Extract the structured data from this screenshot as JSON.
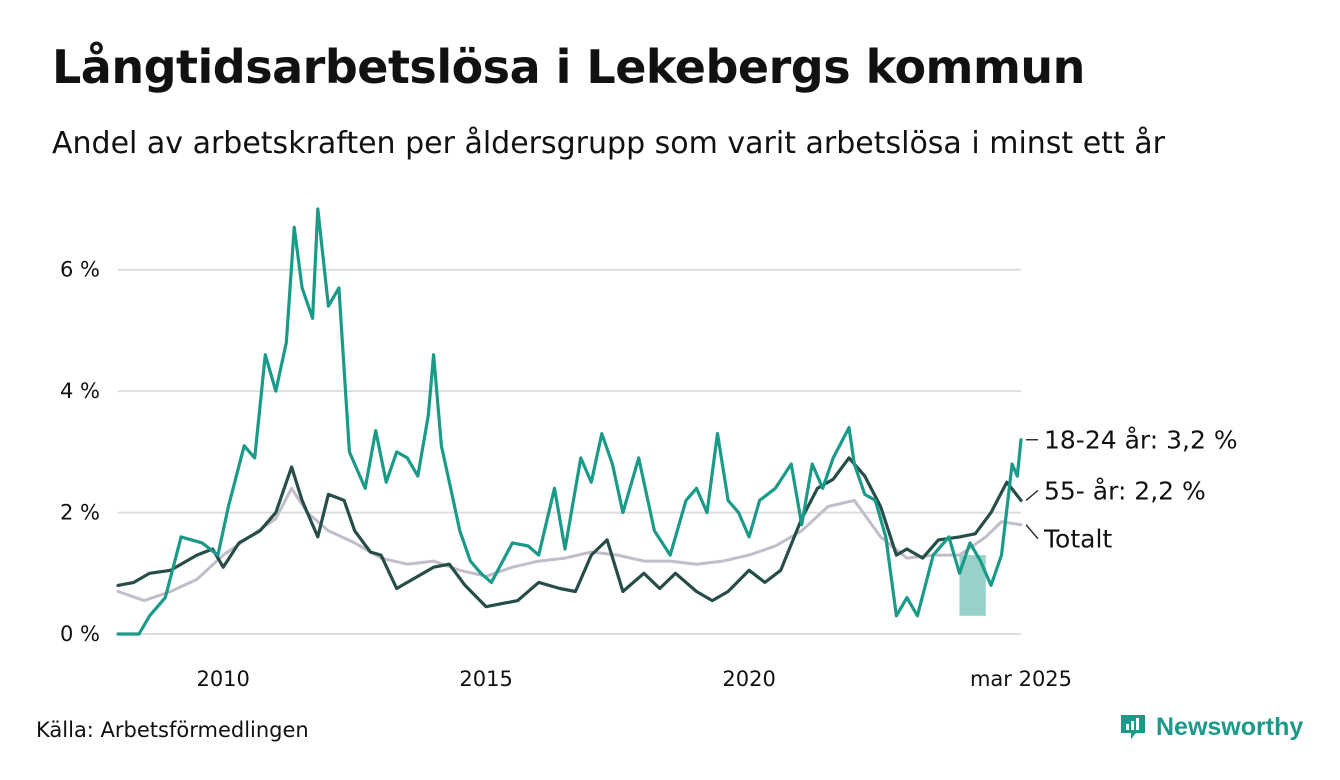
{
  "title": "Långtidsarbetslösa i Lekebergs kommun",
  "subtitle": "Andel av arbetskraften per åldersgrupp som varit arbetslösa i minst ett år",
  "source": "Källa: Arbetsförmedlingen",
  "brand": "Newsworthy",
  "colors": {
    "young": "#1a9a88",
    "old": "#264d47",
    "total": "#c2bccb",
    "grid": "#dddddd",
    "brand": "#1a9a88"
  },
  "chart_data": {
    "type": "line",
    "ylim": [
      0,
      7
    ],
    "xlim": [
      2008.0,
      2025.17
    ],
    "grid": true,
    "yticks": [
      {
        "value": 0,
        "label": "0 %"
      },
      {
        "value": 2,
        "label": "2 %"
      },
      {
        "value": 4,
        "label": "4 %"
      },
      {
        "value": 6,
        "label": "6 %"
      }
    ],
    "xticks": [
      {
        "value": 2010.0,
        "label": "2010"
      },
      {
        "value": 2015.0,
        "label": "2015"
      },
      {
        "value": 2020.0,
        "label": "2020"
      },
      {
        "value": 2025.17,
        "label": "mar 2025"
      }
    ],
    "series": [
      {
        "key": "total",
        "color": "#c2bccb",
        "label": "Totalt",
        "labelValue": 1.8,
        "points": [
          [
            2008.0,
            0.7
          ],
          [
            2008.5,
            0.55
          ],
          [
            2009.0,
            0.7
          ],
          [
            2009.5,
            0.9
          ],
          [
            2010.0,
            1.3
          ],
          [
            2010.5,
            1.6
          ],
          [
            2011.0,
            1.9
          ],
          [
            2011.3,
            2.4
          ],
          [
            2011.6,
            2.0
          ],
          [
            2012.0,
            1.7
          ],
          [
            2012.5,
            1.5
          ],
          [
            2013.0,
            1.25
          ],
          [
            2013.5,
            1.15
          ],
          [
            2014.0,
            1.2
          ],
          [
            2014.5,
            1.05
          ],
          [
            2015.0,
            0.95
          ],
          [
            2015.5,
            1.1
          ],
          [
            2016.0,
            1.2
          ],
          [
            2016.5,
            1.25
          ],
          [
            2017.0,
            1.35
          ],
          [
            2017.5,
            1.3
          ],
          [
            2018.0,
            1.2
          ],
          [
            2018.5,
            1.2
          ],
          [
            2019.0,
            1.15
          ],
          [
            2019.5,
            1.2
          ],
          [
            2020.0,
            1.3
          ],
          [
            2020.5,
            1.45
          ],
          [
            2021.0,
            1.7
          ],
          [
            2021.5,
            2.1
          ],
          [
            2022.0,
            2.2
          ],
          [
            2022.5,
            1.6
          ],
          [
            2023.0,
            1.25
          ],
          [
            2023.5,
            1.3
          ],
          [
            2024.0,
            1.3
          ],
          [
            2024.5,
            1.6
          ],
          [
            2024.8,
            1.85
          ],
          [
            2025.17,
            1.8
          ]
        ]
      },
      {
        "key": "old",
        "color": "#264d47",
        "label": "55- år: 2,2 %",
        "labelValue": 2.2,
        "points": [
          [
            2008.0,
            0.8
          ],
          [
            2008.3,
            0.85
          ],
          [
            2008.6,
            1.0
          ],
          [
            2009.0,
            1.05
          ],
          [
            2009.5,
            1.3
          ],
          [
            2009.8,
            1.4
          ],
          [
            2010.0,
            1.1
          ],
          [
            2010.3,
            1.5
          ],
          [
            2010.7,
            1.7
          ],
          [
            2011.0,
            2.0
          ],
          [
            2011.3,
            2.75
          ],
          [
            2011.5,
            2.2
          ],
          [
            2011.8,
            1.6
          ],
          [
            2012.0,
            2.3
          ],
          [
            2012.3,
            2.2
          ],
          [
            2012.5,
            1.7
          ],
          [
            2012.8,
            1.35
          ],
          [
            2013.0,
            1.3
          ],
          [
            2013.3,
            0.75
          ],
          [
            2013.6,
            0.9
          ],
          [
            2014.0,
            1.1
          ],
          [
            2014.3,
            1.15
          ],
          [
            2014.6,
            0.8
          ],
          [
            2015.0,
            0.45
          ],
          [
            2015.3,
            0.5
          ],
          [
            2015.6,
            0.55
          ],
          [
            2016.0,
            0.85
          ],
          [
            2016.4,
            0.75
          ],
          [
            2016.7,
            0.7
          ],
          [
            2017.0,
            1.3
          ],
          [
            2017.3,
            1.55
          ],
          [
            2017.6,
            0.7
          ],
          [
            2018.0,
            1.0
          ],
          [
            2018.3,
            0.75
          ],
          [
            2018.6,
            1.0
          ],
          [
            2019.0,
            0.7
          ],
          [
            2019.3,
            0.55
          ],
          [
            2019.6,
            0.7
          ],
          [
            2020.0,
            1.05
          ],
          [
            2020.3,
            0.85
          ],
          [
            2020.6,
            1.05
          ],
          [
            2021.0,
            1.9
          ],
          [
            2021.3,
            2.4
          ],
          [
            2021.6,
            2.55
          ],
          [
            2021.9,
            2.9
          ],
          [
            2022.2,
            2.6
          ],
          [
            2022.5,
            2.1
          ],
          [
            2022.8,
            1.3
          ],
          [
            2023.0,
            1.4
          ],
          [
            2023.3,
            1.25
          ],
          [
            2023.6,
            1.55
          ],
          [
            2024.0,
            1.6
          ],
          [
            2024.3,
            1.65
          ],
          [
            2024.6,
            2.0
          ],
          [
            2024.9,
            2.5
          ],
          [
            2025.17,
            2.2
          ]
        ]
      },
      {
        "key": "young",
        "color": "#1a9a88",
        "label": "18-24 år: 3,2 %",
        "labelValue": 3.2,
        "points": [
          [
            2008.0,
            0.0
          ],
          [
            2008.4,
            0.0
          ],
          [
            2008.6,
            0.3
          ],
          [
            2008.9,
            0.6
          ],
          [
            2009.2,
            1.6
          ],
          [
            2009.6,
            1.5
          ],
          [
            2009.9,
            1.3
          ],
          [
            2010.1,
            2.1
          ],
          [
            2010.4,
            3.1
          ],
          [
            2010.6,
            2.9
          ],
          [
            2010.8,
            4.6
          ],
          [
            2011.0,
            4.0
          ],
          [
            2011.2,
            4.8
          ],
          [
            2011.35,
            6.7
          ],
          [
            2011.5,
            5.7
          ],
          [
            2011.7,
            5.2
          ],
          [
            2011.8,
            7.0
          ],
          [
            2012.0,
            5.4
          ],
          [
            2012.2,
            5.7
          ],
          [
            2012.4,
            3.0
          ],
          [
            2012.7,
            2.4
          ],
          [
            2012.9,
            3.35
          ],
          [
            2013.1,
            2.5
          ],
          [
            2013.3,
            3.0
          ],
          [
            2013.5,
            2.9
          ],
          [
            2013.7,
            2.6
          ],
          [
            2013.9,
            3.6
          ],
          [
            2014.0,
            4.6
          ],
          [
            2014.15,
            3.1
          ],
          [
            2014.35,
            2.3
          ],
          [
            2014.5,
            1.7
          ],
          [
            2014.7,
            1.2
          ],
          [
            2014.9,
            1.0
          ],
          [
            2015.1,
            0.85
          ],
          [
            2015.5,
            1.5
          ],
          [
            2015.8,
            1.45
          ],
          [
            2016.0,
            1.3
          ],
          [
            2016.3,
            2.4
          ],
          [
            2016.5,
            1.4
          ],
          [
            2016.8,
            2.9
          ],
          [
            2017.0,
            2.5
          ],
          [
            2017.2,
            3.3
          ],
          [
            2017.4,
            2.8
          ],
          [
            2017.6,
            2.0
          ],
          [
            2017.9,
            2.9
          ],
          [
            2018.2,
            1.7
          ],
          [
            2018.5,
            1.3
          ],
          [
            2018.8,
            2.2
          ],
          [
            2019.0,
            2.4
          ],
          [
            2019.2,
            2.0
          ],
          [
            2019.4,
            3.3
          ],
          [
            2019.6,
            2.2
          ],
          [
            2019.8,
            2.0
          ],
          [
            2020.0,
            1.6
          ],
          [
            2020.2,
            2.2
          ],
          [
            2020.5,
            2.4
          ],
          [
            2020.8,
            2.8
          ],
          [
            2021.0,
            1.8
          ],
          [
            2021.2,
            2.8
          ],
          [
            2021.4,
            2.4
          ],
          [
            2021.6,
            2.9
          ],
          [
            2021.9,
            3.4
          ],
          [
            2022.0,
            2.8
          ],
          [
            2022.2,
            2.3
          ],
          [
            2022.4,
            2.2
          ],
          [
            2022.6,
            1.6
          ],
          [
            2022.8,
            0.3
          ],
          [
            2023.0,
            0.6
          ],
          [
            2023.2,
            0.3
          ],
          [
            2023.5,
            1.3
          ],
          [
            2023.8,
            1.6
          ],
          [
            2024.0,
            1.0
          ],
          [
            2024.2,
            1.5
          ],
          [
            2024.4,
            1.2
          ],
          [
            2024.6,
            0.8
          ],
          [
            2024.8,
            1.3
          ],
          [
            2025.0,
            2.8
          ],
          [
            2025.1,
            2.6
          ],
          [
            2025.17,
            3.2
          ]
        ]
      }
    ],
    "shadedBand": {
      "x": [
        2024.0,
        2024.5
      ],
      "y": [
        0.3,
        1.3
      ]
    }
  }
}
